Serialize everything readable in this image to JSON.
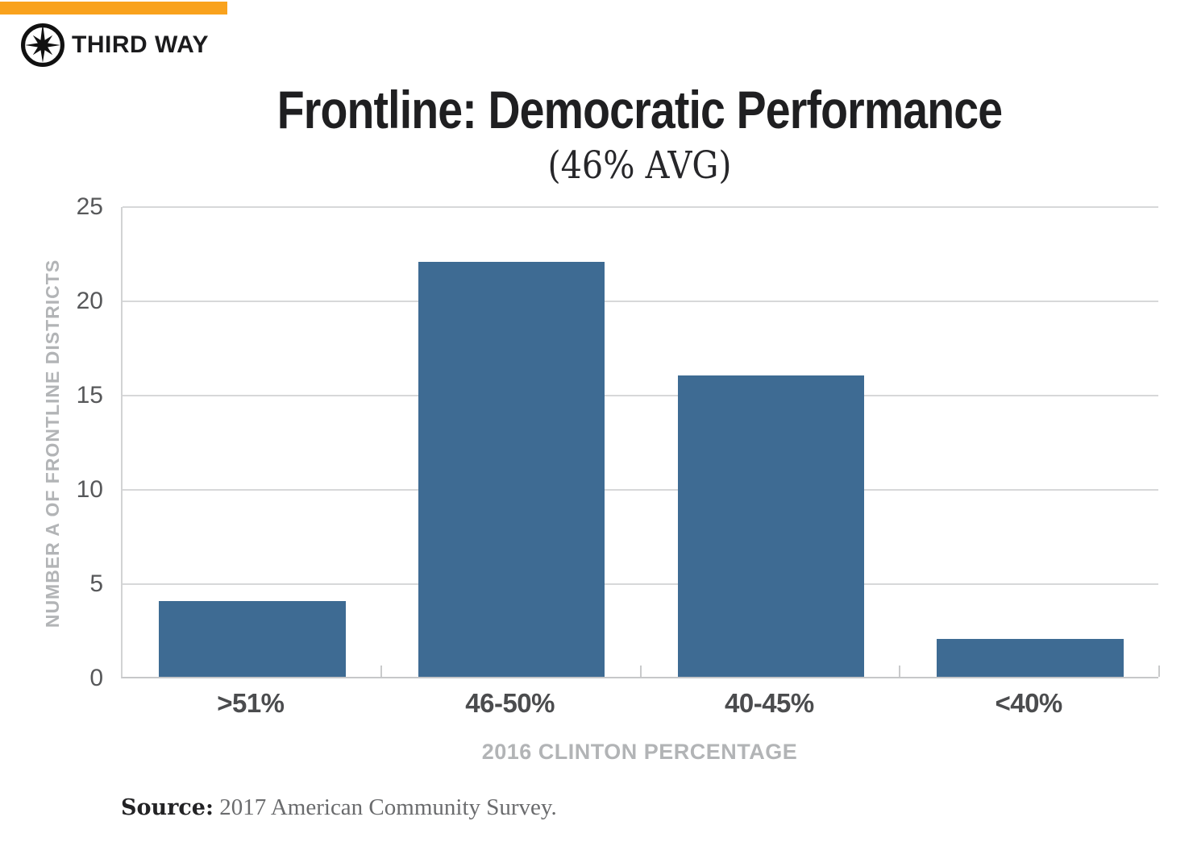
{
  "brand": {
    "name": "THIRD WAY",
    "accent_color": "#F9A21D",
    "logo_icon": "compass-icon"
  },
  "chart_data": {
    "type": "bar",
    "title": "Frontline: Democratic Performance",
    "subtitle": "(46% AVG)",
    "categories": [
      ">51%",
      "46-50%",
      "40-45%",
      "<40%"
    ],
    "values": [
      4,
      22,
      16,
      2
    ],
    "xlabel": "2016 CLINTON PERCENTAGE",
    "ylabel": "NUMBER A OF FRONTLINE DISTRICTS",
    "ylim": [
      0,
      25
    ],
    "ytick_step": 5,
    "grid": "horizontal",
    "legend_position": "none",
    "bar_color": "#3E6B93",
    "bar_width_fraction": 0.72
  },
  "source": {
    "label": "Source:",
    "text": "2017 American Community Survey."
  }
}
